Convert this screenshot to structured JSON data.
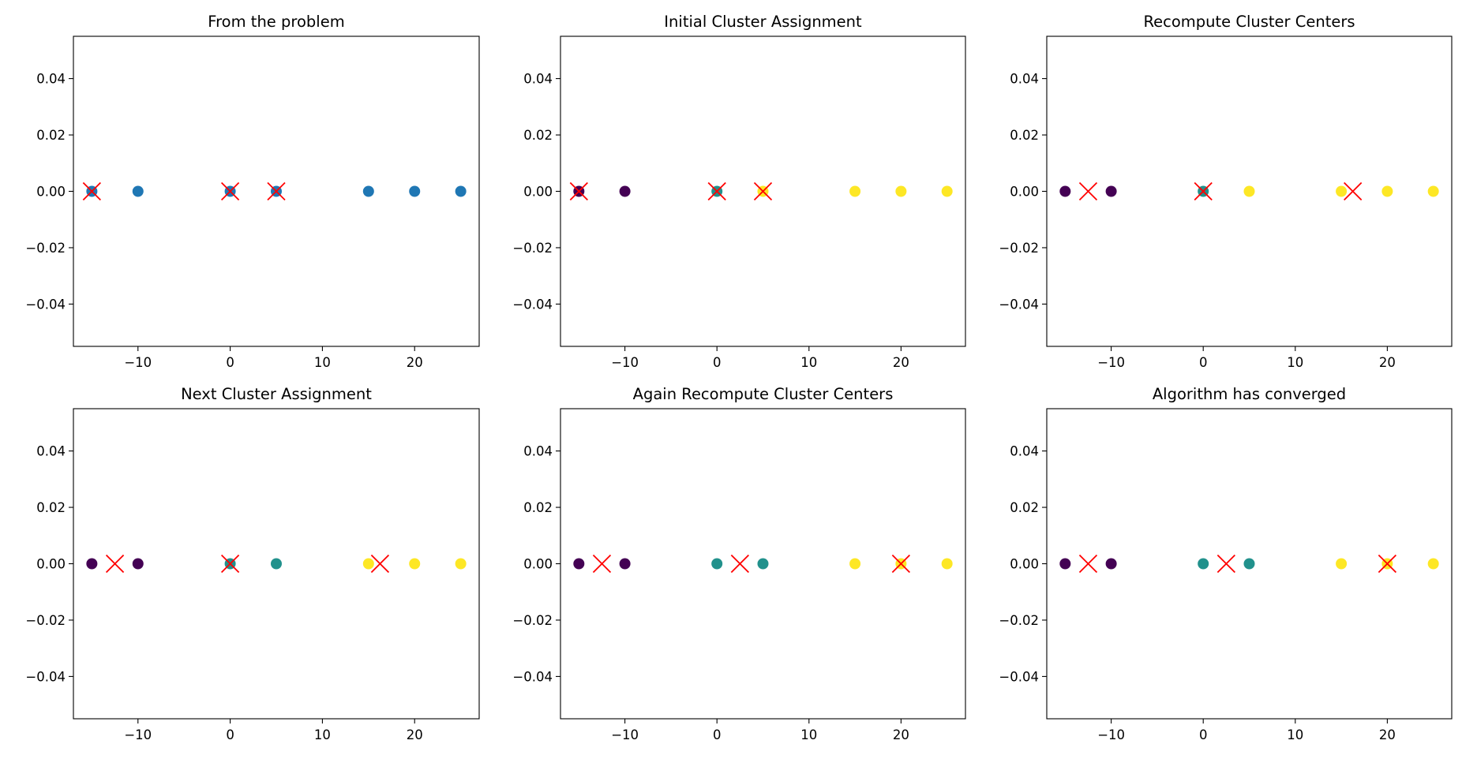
{
  "colors": {
    "default_point": "#1f77b4",
    "cluster_colors": [
      "#440154",
      "#21918c",
      "#fde725"
    ],
    "center_marker": "#ff0000"
  },
  "chart_data": [
    {
      "type": "scatter",
      "title": "From the problem",
      "xlim": [
        -17,
        27
      ],
      "ylim": [
        -0.055,
        0.055
      ],
      "x_ticks": [
        -10,
        0,
        10,
        20
      ],
      "y_ticks": [
        -0.04,
        -0.02,
        0.0,
        0.02,
        0.04
      ],
      "x_tick_labels": [
        "−10",
        "0",
        "10",
        "20"
      ],
      "y_tick_labels": [
        "−0.04",
        "−0.02",
        "0.00",
        "0.02",
        "0.04"
      ],
      "points": [
        {
          "x": -15,
          "y": 0
        },
        {
          "x": -10,
          "y": 0
        },
        {
          "x": 0,
          "y": 0
        },
        {
          "x": 5,
          "y": 0
        },
        {
          "x": 15,
          "y": 0
        },
        {
          "x": 20,
          "y": 0
        },
        {
          "x": 25,
          "y": 0
        }
      ],
      "centers": [
        {
          "x": -15,
          "y": 0
        },
        {
          "x": 0,
          "y": 0
        },
        {
          "x": 5,
          "y": 0
        }
      ]
    },
    {
      "type": "scatter",
      "title": "Initial Cluster Assignment",
      "xlim": [
        -17,
        27
      ],
      "ylim": [
        -0.055,
        0.055
      ],
      "x_ticks": [
        -10,
        0,
        10,
        20
      ],
      "y_ticks": [
        -0.04,
        -0.02,
        0.0,
        0.02,
        0.04
      ],
      "x_tick_labels": [
        "−10",
        "0",
        "10",
        "20"
      ],
      "y_tick_labels": [
        "−0.04",
        "−0.02",
        "0.00",
        "0.02",
        "0.04"
      ],
      "points": [
        {
          "x": -15,
          "y": 0,
          "cluster": 0
        },
        {
          "x": -10,
          "y": 0,
          "cluster": 0
        },
        {
          "x": 0,
          "y": 0,
          "cluster": 1
        },
        {
          "x": 5,
          "y": 0,
          "cluster": 2
        },
        {
          "x": 15,
          "y": 0,
          "cluster": 2
        },
        {
          "x": 20,
          "y": 0,
          "cluster": 2
        },
        {
          "x": 25,
          "y": 0,
          "cluster": 2
        }
      ],
      "centers": [
        {
          "x": -15,
          "y": 0
        },
        {
          "x": 0,
          "y": 0
        },
        {
          "x": 5,
          "y": 0
        }
      ]
    },
    {
      "type": "scatter",
      "title": "Recompute Cluster Centers",
      "xlim": [
        -17,
        27
      ],
      "ylim": [
        -0.055,
        0.055
      ],
      "x_ticks": [
        -10,
        0,
        10,
        20
      ],
      "y_ticks": [
        -0.04,
        -0.02,
        0.0,
        0.02,
        0.04
      ],
      "x_tick_labels": [
        "−10",
        "0",
        "10",
        "20"
      ],
      "y_tick_labels": [
        "−0.04",
        "−0.02",
        "0.00",
        "0.02",
        "0.04"
      ],
      "points": [
        {
          "x": -15,
          "y": 0,
          "cluster": 0
        },
        {
          "x": -10,
          "y": 0,
          "cluster": 0
        },
        {
          "x": 0,
          "y": 0,
          "cluster": 1
        },
        {
          "x": 5,
          "y": 0,
          "cluster": 2
        },
        {
          "x": 15,
          "y": 0,
          "cluster": 2
        },
        {
          "x": 20,
          "y": 0,
          "cluster": 2
        },
        {
          "x": 25,
          "y": 0,
          "cluster": 2
        }
      ],
      "centers": [
        {
          "x": -12.5,
          "y": 0
        },
        {
          "x": 0,
          "y": 0
        },
        {
          "x": 16.25,
          "y": 0
        }
      ]
    },
    {
      "type": "scatter",
      "title": "Next Cluster Assignment",
      "xlim": [
        -17,
        27
      ],
      "ylim": [
        -0.055,
        0.055
      ],
      "x_ticks": [
        -10,
        0,
        10,
        20
      ],
      "y_ticks": [
        -0.04,
        -0.02,
        0.0,
        0.02,
        0.04
      ],
      "x_tick_labels": [
        "−10",
        "0",
        "10",
        "20"
      ],
      "y_tick_labels": [
        "−0.04",
        "−0.02",
        "0.00",
        "0.02",
        "0.04"
      ],
      "points": [
        {
          "x": -15,
          "y": 0,
          "cluster": 0
        },
        {
          "x": -10,
          "y": 0,
          "cluster": 0
        },
        {
          "x": 0,
          "y": 0,
          "cluster": 1
        },
        {
          "x": 5,
          "y": 0,
          "cluster": 1
        },
        {
          "x": 15,
          "y": 0,
          "cluster": 2
        },
        {
          "x": 20,
          "y": 0,
          "cluster": 2
        },
        {
          "x": 25,
          "y": 0,
          "cluster": 2
        }
      ],
      "centers": [
        {
          "x": -12.5,
          "y": 0
        },
        {
          "x": 0,
          "y": 0
        },
        {
          "x": 16.25,
          "y": 0
        }
      ]
    },
    {
      "type": "scatter",
      "title": "Again Recompute Cluster Centers",
      "xlim": [
        -17,
        27
      ],
      "ylim": [
        -0.055,
        0.055
      ],
      "x_ticks": [
        -10,
        0,
        10,
        20
      ],
      "y_ticks": [
        -0.04,
        -0.02,
        0.0,
        0.02,
        0.04
      ],
      "x_tick_labels": [
        "−10",
        "0",
        "10",
        "20"
      ],
      "y_tick_labels": [
        "−0.04",
        "−0.02",
        "0.00",
        "0.02",
        "0.04"
      ],
      "points": [
        {
          "x": -15,
          "y": 0,
          "cluster": 0
        },
        {
          "x": -10,
          "y": 0,
          "cluster": 0
        },
        {
          "x": 0,
          "y": 0,
          "cluster": 1
        },
        {
          "x": 5,
          "y": 0,
          "cluster": 1
        },
        {
          "x": 15,
          "y": 0,
          "cluster": 2
        },
        {
          "x": 20,
          "y": 0,
          "cluster": 2
        },
        {
          "x": 25,
          "y": 0,
          "cluster": 2
        }
      ],
      "centers": [
        {
          "x": -12.5,
          "y": 0
        },
        {
          "x": 2.5,
          "y": 0
        },
        {
          "x": 20,
          "y": 0
        }
      ]
    },
    {
      "type": "scatter",
      "title": "Algorithm has converged",
      "xlim": [
        -17,
        27
      ],
      "ylim": [
        -0.055,
        0.055
      ],
      "x_ticks": [
        -10,
        0,
        10,
        20
      ],
      "y_ticks": [
        -0.04,
        -0.02,
        0.0,
        0.02,
        0.04
      ],
      "x_tick_labels": [
        "−10",
        "0",
        "10",
        "20"
      ],
      "y_tick_labels": [
        "−0.04",
        "−0.02",
        "0.00",
        "0.02",
        "0.04"
      ],
      "points": [
        {
          "x": -15,
          "y": 0,
          "cluster": 0
        },
        {
          "x": -10,
          "y": 0,
          "cluster": 0
        },
        {
          "x": 0,
          "y": 0,
          "cluster": 1
        },
        {
          "x": 5,
          "y": 0,
          "cluster": 1
        },
        {
          "x": 15,
          "y": 0,
          "cluster": 2
        },
        {
          "x": 20,
          "y": 0,
          "cluster": 2
        },
        {
          "x": 25,
          "y": 0,
          "cluster": 2
        }
      ],
      "centers": [
        {
          "x": -12.5,
          "y": 0
        },
        {
          "x": 2.5,
          "y": 0
        },
        {
          "x": 20,
          "y": 0
        }
      ]
    }
  ]
}
